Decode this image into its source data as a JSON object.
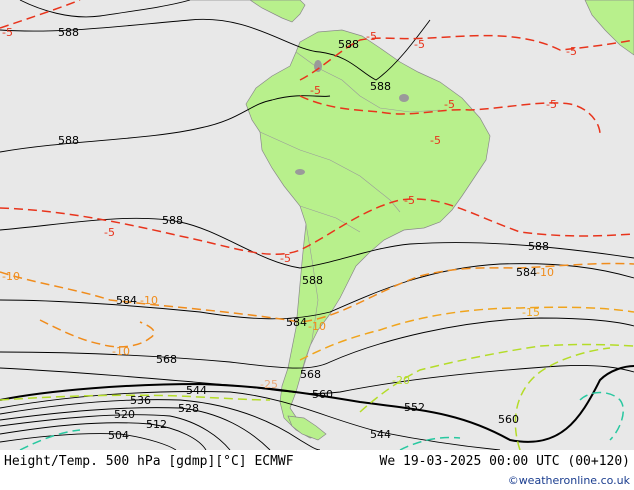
{
  "footer": {
    "title": "Height/Temp. 500 hPa [gdmp][°C] ECMWF",
    "datetime": "We 19-03-2025 00:00 UTC (00+120)",
    "credit": "©weatheronline.co.uk"
  },
  "colors": {
    "ocean": "#e8e8e8",
    "land": "#b8f08c",
    "height_contour": "#000000",
    "temp_minus5": "#e8341c",
    "temp_minus10": "#f08c1c",
    "temp_minus15": "#f0a41c",
    "temp_minus20": "#b4dc28",
    "temp_minus25": "#28c8a0"
  },
  "height_labels": [
    "588",
    "588",
    "588",
    "588",
    "588",
    "588",
    "588",
    "584",
    "584",
    "584",
    "568",
    "568",
    "560",
    "560",
    "552",
    "544",
    "544",
    "536",
    "528",
    "520",
    "512",
    "504"
  ],
  "temp_labels": [
    "-5",
    "-5",
    "-5",
    "-5",
    "-5",
    "-5",
    "-5",
    "-5",
    "-5",
    "-5",
    "-5",
    "-10",
    "-10",
    "-10",
    "-10",
    "-10",
    "-15",
    "-20",
    "-25"
  ]
}
